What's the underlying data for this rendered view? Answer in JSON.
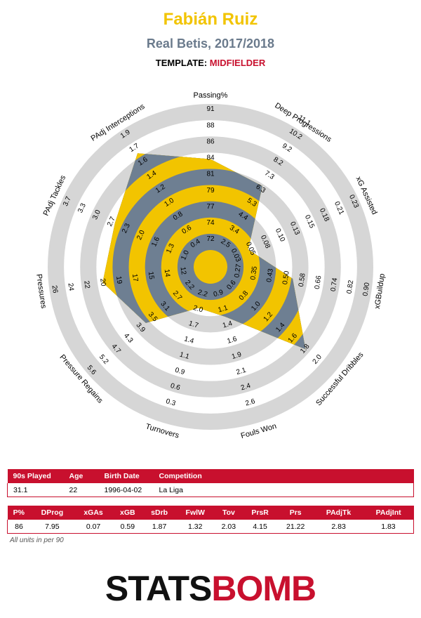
{
  "header": {
    "player": "Fabián Ruiz",
    "team_season": "Real Betis, 2017/2018",
    "template_label": "TEMPLATE:",
    "template_value": "MIDFIELDER"
  },
  "colors": {
    "player": "#f2c400",
    "axes_band": "#d6d6d6",
    "grey_poly": "#6e7f92",
    "brand": "#c8102e"
  },
  "chart_data": {
    "type": "radar",
    "axes": [
      {
        "label": "Passing%",
        "ticks": [
          "72",
          "74",
          "77",
          "79",
          "81",
          "84",
          "86",
          "88",
          "91"
        ],
        "value": 86,
        "norm": 0.7
      },
      {
        "label": "Deep Progressions",
        "ticks": [
          "2.5",
          "3.4",
          "4.4",
          "5.3",
          "6.3",
          "7.3",
          "8.2",
          "9.2",
          "10.2",
          "11.1"
        ],
        "value": 7.95,
        "norm": 0.61
      },
      {
        "label": "xG Assisted",
        "ticks": [
          "0.03",
          "0.05",
          "0.08",
          "0.10",
          "0.13",
          "0.15",
          "0.18",
          "0.21",
          "0.23"
        ],
        "value": 0.07,
        "norm": 0.19
      },
      {
        "label": "xGBuildup",
        "ticks": [
          "0.27",
          "0.35",
          "0.43",
          "0.50",
          "0.58",
          "0.66",
          "0.74",
          "0.82",
          "0.90"
        ],
        "value": 0.59,
        "norm": 0.51
      },
      {
        "label": "Successful Dribbles",
        "ticks": [
          "0.6",
          "0.8",
          "1.0",
          "1.2",
          "1.4",
          "1.6",
          "1.8",
          "2.0"
        ],
        "value": 1.87,
        "norm": 0.84
      },
      {
        "label": "Fouls Won",
        "ticks": [
          "0.9",
          "1.1",
          "1.4",
          "1.6",
          "1.9",
          "2.1",
          "2.4",
          "2.6"
        ],
        "value": 1.32,
        "norm": 0.27
      },
      {
        "label": "Turnovers",
        "ticks": [
          "2.2",
          "2.0",
          "1.7",
          "1.4",
          "1.1",
          "0.9",
          "0.6",
          "0.3"
        ],
        "value": 2.03,
        "norm": 0.2
      },
      {
        "label": "Pressure Regains",
        "ticks": [
          "2.2",
          "2.7",
          "3.1",
          "3.5",
          "3.9",
          "4.3",
          "4.7",
          "5.2",
          "5.6"
        ],
        "value": 4.15,
        "norm": 0.53
      },
      {
        "label": "Pressures",
        "ticks": [
          "12",
          "14",
          "15",
          "17",
          "19",
          "20",
          "22",
          "24",
          "26"
        ],
        "value": 21.22,
        "norm": 0.71
      },
      {
        "label": "PAdj Tackles",
        "ticks": [
          "1.0",
          "1.3",
          "1.6",
          "2.0",
          "2.3",
          "2.7",
          "3.0",
          "3.3",
          "3.7"
        ],
        "value": 2.83,
        "norm": 0.68
      },
      {
        "label": "PAdj Interceptions",
        "ticks": [
          "0.4",
          "0.6",
          "0.8",
          "1.0",
          "1.2",
          "1.4",
          "1.6",
          "1.7",
          "1.9"
        ],
        "value": 1.83,
        "norm": 0.91
      }
    ]
  },
  "info_table": {
    "headers": [
      "90s Played",
      "Age",
      "Birth Date",
      "Competition"
    ],
    "values": [
      "31.1",
      "22",
      "1996-04-02",
      "La Liga"
    ]
  },
  "stats_table": {
    "headers": [
      "P%",
      "DProg",
      "xGAs",
      "xGB",
      "sDrb",
      "FwlW",
      "Tov",
      "PrsR",
      "Prs",
      "PAdjTk",
      "PAdjInt"
    ],
    "values": [
      "86",
      "7.95",
      "0.07",
      "0.59",
      "1.87",
      "1.32",
      "2.03",
      "4.15",
      "21.22",
      "2.83",
      "1.83"
    ]
  },
  "footnote": "All units in per 90",
  "logo": {
    "part1": "STATS",
    "part2": "BOMB"
  }
}
